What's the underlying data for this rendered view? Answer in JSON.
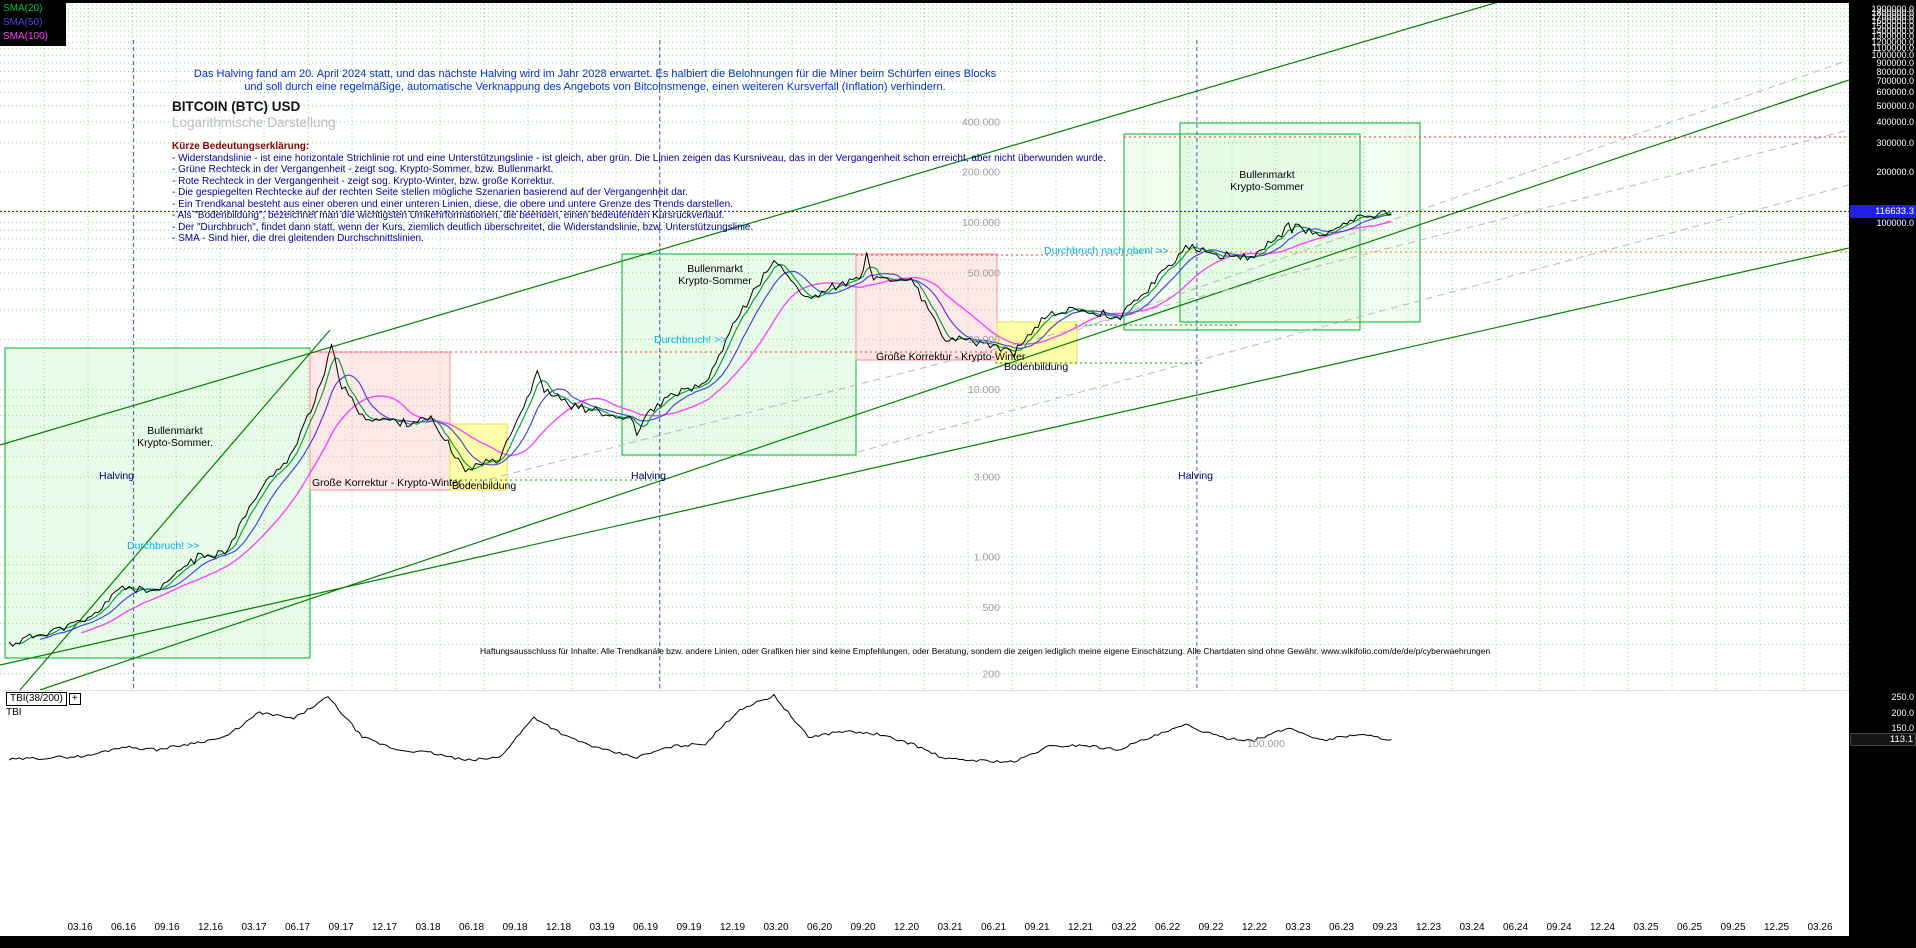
{
  "colors": {
    "sma20": "#00c040",
    "sma50": "#4646e0",
    "sma100": "#ff44ff",
    "price_line": "#000000",
    "current_price_line": "#0000ff",
    "current_price_badge_bg": "#2020e0",
    "breakout_text": "#00aeef",
    "halving_label": "#000080",
    "note_text": "#0033cc",
    "grid": "#00b400",
    "bull_zone_border": "#00b02c",
    "bear_zone_border": "#ff8c8c",
    "bottom_zone_fill": "#ffff8c"
  },
  "legend": {
    "items": [
      {
        "label": "SMA(20)"
      },
      {
        "label": "SMA(50)"
      },
      {
        "label": "SMA(100)"
      }
    ]
  },
  "header": {
    "halving_note_line1": "Das Halving fand am 20. April 2024 statt, und das nächste Halving wird im Jahr 2028 erwartet. Es halbiert die Belohnungen für die Miner beim Schürfen eines Blocks",
    "halving_note_line2": "und soll durch eine regelmäßige, automatische Verknappung des Angebots von Bitcoinsmenge, einen weiteren Kursverfall (Inflation) verhindern.",
    "title": "BITCOIN (BTC) USD",
    "subtitle": "Logarithmische Darstellung"
  },
  "explanation": {
    "heading": "Kürze Bedeutungserklärung:",
    "items": [
      "- Widerstandslinie - ist eine horizontale Strichlinie rot und eine Unterstützungslinie - ist gleich, aber grün. Die Linien zeigen das Kursniveau, das in der Vergangenheit schon erreicht, aber nicht überwunden wurde.",
      "- Grüne Rechteck in der Vergangenheit - zeigt sog. Krypto-Sommer, bzw. Bullenmarkt.",
      "- Rote Rechteck in der Vergangenheit - zeigt sog. Krypto-Winter, bzw. große Korrektur.",
      "- Die gespiegelten Rechtecke auf der rechten Seite stellen mögliche Szenarien basierend auf der Vergangenheit dar.",
      "- Ein Trendkanal besteht aus einer oberen und einer unteren Linien, diese, die obere und untere Grenze des Trends darstellen.",
      "- Als \"Bodenbildung\", bezeichnet man die wichtigsten Umkehrformationen, die beenden, einen bedeutenden Kursrückverlauf.",
      "- Der \"Durchbruch\", findet dann statt, wenn der Kurs, ziemlich deutlich überschreitet, die Widerstandslinie, bzw. Unterstützungslinie.",
      "- SMA - Sind hier, die drei gleitenden Durchschnittslinien."
    ]
  },
  "annotations": {
    "bull_line1": "Bullenmarkt",
    "bull1_line2": "Krypto-Sommer.",
    "bull2_line2": "Krypto-Sommer",
    "winter": "Große Korrektur - Krypto-Winter",
    "bottom": "Bodenbildung",
    "halving": "Halving",
    "breakout": "Durchbruch! >>",
    "breakout_up": "Durchbruch nach oben! >>"
  },
  "disclaimer": "Haftungsausschluss für Inhalte: Alle Trendkanäle bzw. andere Linien, oder Grafiken hier sind keine Empfehlungen, oder Beratung, sondern die zeigen lediglich meine eigene Einschätzung. Alle Chartdaten sind ohne Gewähr.  www.wikifolio.com/de/de/p/cyberwaehrungen",
  "right_axis": {
    "labels": [
      "1900000.0",
      "1800000.0",
      "1700000.0",
      "1600000.0",
      "1500000.0",
      "1400000.0",
      "1300000.0",
      "1200000.0",
      "1100000.0",
      "1000000.0",
      "900000.0",
      "800000.0",
      "700000.0",
      "600000.0",
      "500000.0",
      "400000.0",
      "300000.0",
      "200000.0",
      "100000.0"
    ],
    "current": "116633.3"
  },
  "tbi": {
    "indicator_label": "TBI(38/200)",
    "expand_icon": "+",
    "name": "TBI",
    "axis_labels": [
      "250.0",
      "200.0",
      "150.0"
    ],
    "current": "113.1",
    "level_label": "100.000"
  },
  "x_axis": {
    "dates": [
      "03.16",
      "06.16",
      "09.16",
      "12.16",
      "03.17",
      "06.17",
      "09.17",
      "12.17",
      "03.18",
      "06.18",
      "09.18",
      "12.18",
      "03.19",
      "06.19",
      "09.19",
      "12.19",
      "03.20",
      "06.20",
      "09.20",
      "12.20",
      "03.21",
      "06.21",
      "09.21",
      "12.21",
      "03.22",
      "06.22",
      "09.22",
      "12.22",
      "03.23",
      "06.23",
      "09.23",
      "12.23",
      "03.24",
      "06.24",
      "09.24",
      "12.24",
      "03.25",
      "06.25",
      "09.25",
      "12.25",
      "03.26"
    ]
  },
  "chart_data": {
    "type": "line",
    "title": "BITCOIN (BTC) USD",
    "subtitle": "Logarithmische Darstellung",
    "yscale": "log",
    "ylim": [
      160,
      2000000
    ],
    "grid": true,
    "x": [
      "03.16",
      "06.16",
      "09.16",
      "12.16",
      "03.17",
      "06.17",
      "09.17",
      "12.17",
      "03.18",
      "06.18",
      "09.18",
      "12.18",
      "03.19",
      "06.19",
      "09.19",
      "12.19",
      "03.20",
      "06.20",
      "09.20",
      "12.20",
      "03.21",
      "06.21",
      "09.21",
      "12.21",
      "03.22",
      "06.22",
      "09.22",
      "12.22",
      "03.23",
      "06.23",
      "09.23",
      "12.23",
      "03.24",
      "06.24",
      "09.24",
      "12.24",
      "03.25",
      "06.25",
      "09.25"
    ],
    "series": [
      {
        "name": "BTC/USD",
        "values": [
          416,
          670,
          610,
          963,
          1080,
          2480,
          4340,
          13850,
          6940,
          6400,
          6600,
          3300,
          4000,
          10800,
          8300,
          7200,
          6440,
          9140,
          10780,
          29000,
          58800,
          35000,
          43800,
          46200,
          45500,
          19900,
          19400,
          16550,
          28500,
          30450,
          26950,
          42250,
          71300,
          62700,
          63300,
          93400,
          82500,
          107100,
          116633
        ]
      },
      {
        "name": "TBI(38/200)",
        "values": [
          60,
          90,
          80,
          100,
          120,
          200,
          180,
          250,
          120,
          80,
          70,
          45,
          55,
          185,
          120,
          80,
          55,
          90,
          100,
          210,
          255,
          120,
          140,
          130,
          100,
          50,
          45,
          40,
          90,
          95,
          80,
          120,
          160,
          120,
          110,
          150,
          110,
          130,
          113.1
        ]
      }
    ],
    "overlays": [
      "SMA(20)",
      "SMA(50)",
      "SMA(100)"
    ],
    "y_ticks": [
      {
        "value": 400000,
        "label": "400.000"
      },
      {
        "value": 200000,
        "label": "200.000"
      },
      {
        "value": 100000,
        "label": "100.000"
      },
      {
        "value": 50000,
        "label": "50.000"
      },
      {
        "value": 20000,
        "label": "20.000"
      },
      {
        "value": 10000,
        "label": "10.000"
      },
      {
        "value": 3000,
        "label": "3.000"
      },
      {
        "value": 1000,
        "label": "1.000"
      },
      {
        "value": 500,
        "label": "500"
      },
      {
        "value": 200,
        "label": "200"
      }
    ],
    "current_price": 116633.3,
    "tbi_current": 113.1,
    "legend_position": "top-left"
  }
}
